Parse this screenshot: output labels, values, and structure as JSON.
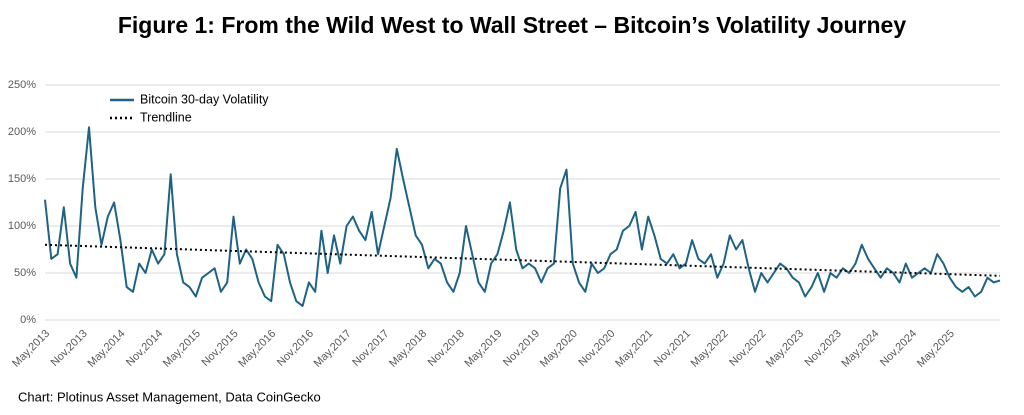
{
  "chart_data": {
    "type": "line",
    "title": "Figure 1: From the Wild West to Wall Street – Bitcoin’s Volatility Journey",
    "source": "Chart: Plotinus Asset Management, Data CoinGecko",
    "categories": [
      "May,2013",
      null,
      null,
      null,
      null,
      null,
      "Nov,2013",
      null,
      null,
      null,
      null,
      null,
      "May,2014",
      null,
      null,
      null,
      null,
      null,
      "Nov,2014",
      null,
      null,
      null,
      null,
      null,
      "May,2015",
      null,
      null,
      null,
      null,
      null,
      "Nov,2015",
      null,
      null,
      null,
      null,
      null,
      "May,2016",
      null,
      null,
      null,
      null,
      null,
      "Nov,2016",
      null,
      null,
      null,
      null,
      null,
      "May,2017",
      null,
      null,
      null,
      null,
      null,
      "Nov,2017",
      null,
      null,
      null,
      null,
      null,
      "May,2018",
      null,
      null,
      null,
      null,
      null,
      "Nov,2018",
      null,
      null,
      null,
      null,
      null,
      "May,2019",
      null,
      null,
      null,
      null,
      null,
      "Nov,2019",
      null,
      null,
      null,
      null,
      null,
      "May,2020",
      null,
      null,
      null,
      null,
      null,
      "Nov,2020",
      null,
      null,
      null,
      null,
      null,
      "May,2021",
      null,
      null,
      null,
      null,
      null,
      "Nov,2021",
      null,
      null,
      null,
      null,
      null,
      "May,2022",
      null,
      null,
      null,
      null,
      null,
      "Nov,2022",
      null,
      null,
      null,
      null,
      null,
      "May,2023",
      null,
      null,
      null,
      null,
      null,
      "Nov,2023",
      null,
      null,
      null,
      null,
      null,
      "May,2024",
      null,
      null,
      null,
      null,
      null,
      "Nov,2024",
      null,
      null,
      null,
      null,
      null,
      "May,2025",
      null,
      null,
      null,
      null,
      null,
      null,
      null,
      null
    ],
    "series": [
      {
        "name": "Bitcoin 30-day Volatility",
        "color": "#1f6384",
        "values": [
          128,
          65,
          70,
          120,
          60,
          45,
          140,
          205,
          120,
          80,
          110,
          125,
          85,
          35,
          30,
          60,
          50,
          75,
          60,
          70,
          155,
          70,
          40,
          35,
          25,
          45,
          50,
          55,
          30,
          40,
          110,
          60,
          75,
          65,
          40,
          25,
          20,
          80,
          70,
          40,
          20,
          15,
          40,
          30,
          95,
          50,
          90,
          60,
          100,
          110,
          95,
          85,
          115,
          70,
          100,
          130,
          182,
          150,
          120,
          90,
          80,
          55,
          65,
          60,
          40,
          30,
          50,
          100,
          70,
          40,
          30,
          60,
          70,
          95,
          125,
          75,
          55,
          60,
          55,
          40,
          55,
          60,
          140,
          160,
          60,
          40,
          30,
          60,
          50,
          55,
          70,
          75,
          95,
          100,
          115,
          75,
          110,
          90,
          65,
          60,
          70,
          55,
          60,
          85,
          65,
          60,
          70,
          45,
          60,
          90,
          75,
          85,
          55,
          30,
          50,
          40,
          50,
          60,
          55,
          45,
          40,
          25,
          35,
          50,
          30,
          50,
          45,
          55,
          50,
          60,
          80,
          65,
          55,
          45,
          55,
          50,
          40,
          60,
          45,
          50,
          55,
          50,
          70,
          60,
          45,
          35,
          30,
          35,
          25,
          30,
          45,
          40,
          42
        ]
      }
    ],
    "trendline": {
      "name": "Trendline",
      "color": "#000000",
      "values": [
        80,
        47
      ]
    },
    "ylim": [
      0,
      250
    ],
    "yticks": [
      {
        "value": 0,
        "label": "0%"
      },
      {
        "value": 50,
        "label": "50%"
      },
      {
        "value": 100,
        "label": "100%"
      },
      {
        "value": 150,
        "label": "150%"
      },
      {
        "value": 200,
        "label": "200%"
      },
      {
        "value": 250,
        "label": "250%"
      }
    ],
    "grid": true
  }
}
